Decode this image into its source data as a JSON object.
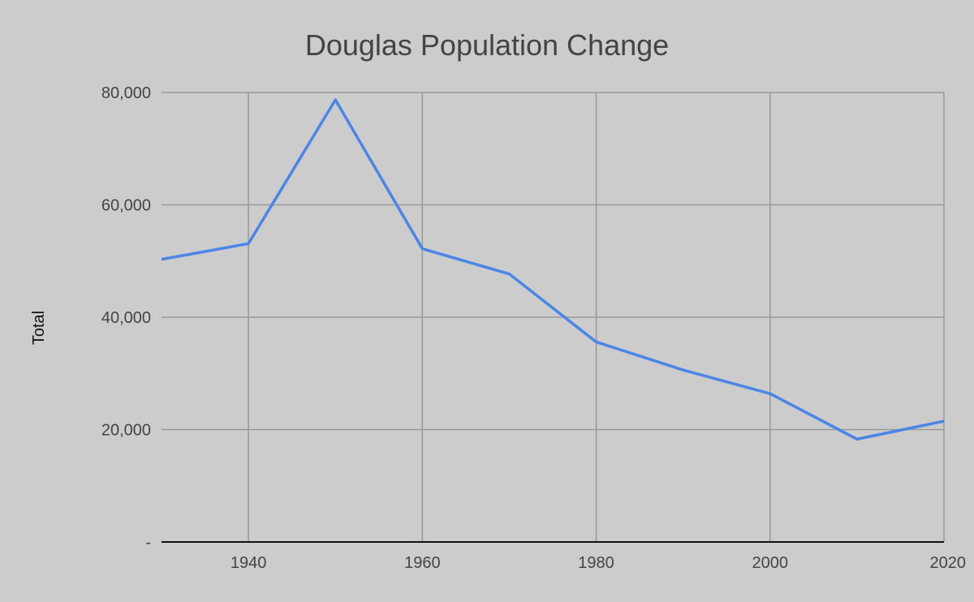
{
  "chart_data": {
    "type": "line",
    "title": "Douglas Population Change",
    "xlabel": "",
    "ylabel": "Total",
    "xlim": [
      1930,
      2020
    ],
    "ylim": [
      0,
      80000
    ],
    "x_ticks": [
      1940,
      1960,
      1980,
      2000,
      2020
    ],
    "x_tick_labels": [
      "1940",
      "1960",
      "1980",
      "2000",
      "2020"
    ],
    "y_ticks": [
      0,
      20000,
      40000,
      60000,
      80000
    ],
    "y_tick_labels": [
      "-",
      "20,000",
      "40,000",
      "60,000",
      "80,000"
    ],
    "grid": true,
    "legend": "none",
    "series": [
      {
        "color": "#4a86e8",
        "x": [
          1930,
          1940,
          1950,
          1960,
          1970,
          1980,
          1990,
          2000,
          2010,
          2020
        ],
        "values": [
          50300,
          53100,
          78700,
          52200,
          47700,
          35600,
          30600,
          26400,
          18300,
          21500
        ]
      }
    ]
  }
}
